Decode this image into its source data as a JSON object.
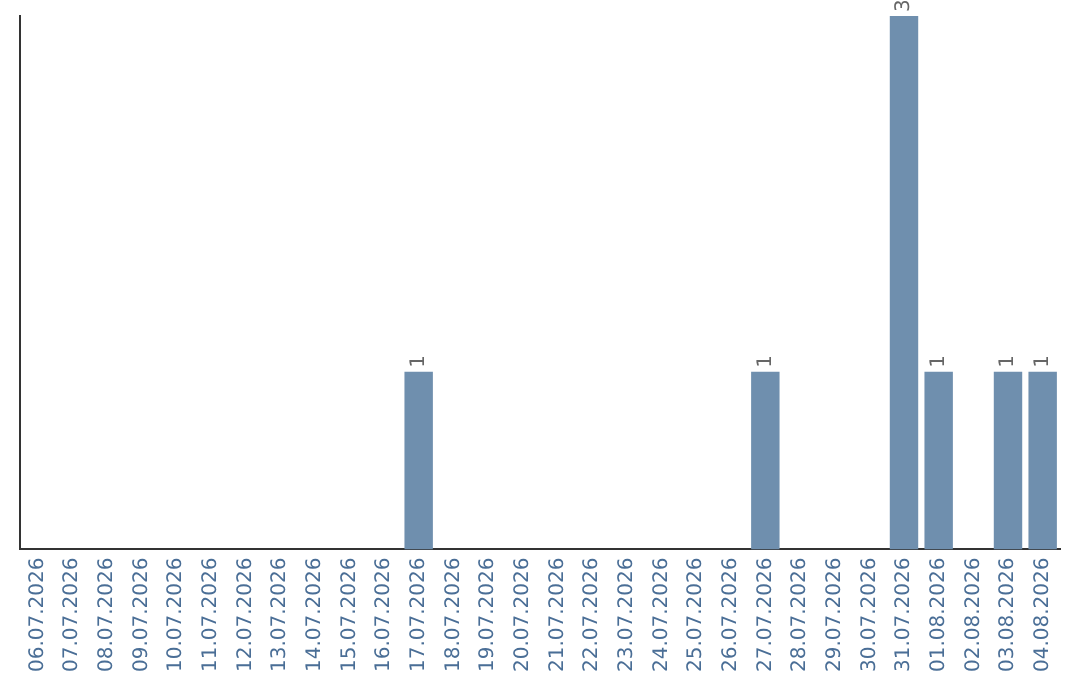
{
  "chart_data": {
    "type": "bar",
    "categories": [
      "06.07.2026",
      "07.07.2026",
      "08.07.2026",
      "09.07.2026",
      "10.07.2026",
      "11.07.2026",
      "12.07.2026",
      "13.07.2026",
      "14.07.2026",
      "15.07.2026",
      "16.07.2026",
      "17.07.2026",
      "18.07.2026",
      "19.07.2026",
      "20.07.2026",
      "21.07.2026",
      "22.07.2026",
      "23.07.2026",
      "24.07.2026",
      "25.07.2026",
      "26.07.2026",
      "27.07.2026",
      "28.07.2026",
      "29.07.2026",
      "30.07.2026",
      "31.07.2026",
      "01.08.2026",
      "02.08.2026",
      "03.08.2026",
      "04.08.2026"
    ],
    "values": [
      0,
      0,
      0,
      0,
      0,
      0,
      0,
      0,
      0,
      0,
      0,
      1,
      0,
      0,
      0,
      0,
      0,
      0,
      0,
      0,
      0,
      1,
      0,
      0,
      0,
      3,
      1,
      0,
      1,
      1
    ],
    "value_labels": [
      null,
      null,
      null,
      null,
      null,
      null,
      null,
      null,
      null,
      null,
      null,
      "1",
      null,
      null,
      null,
      null,
      null,
      null,
      null,
      null,
      null,
      "1",
      null,
      null,
      null,
      "3",
      "1",
      null,
      "1",
      "1"
    ],
    "color": "#6f8fae",
    "tick_labels": "x",
    "grid": false,
    "legend": false
  }
}
